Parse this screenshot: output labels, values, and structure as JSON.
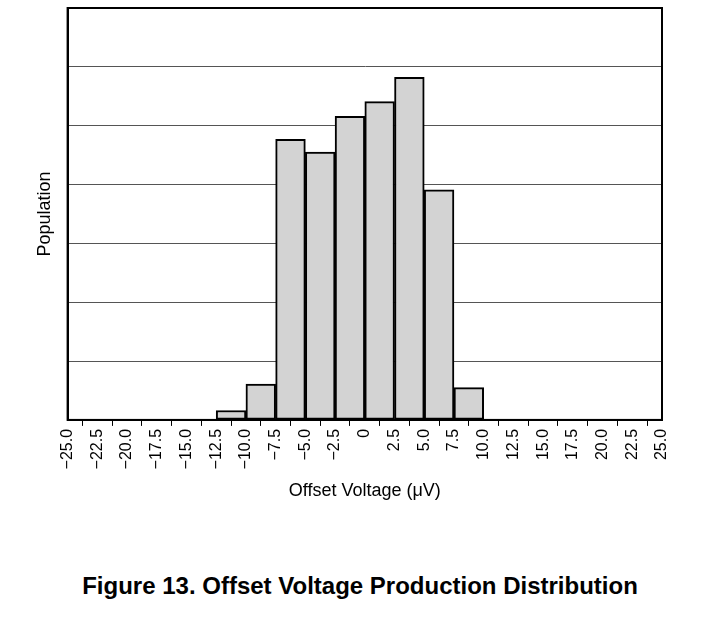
{
  "chart_data": {
    "type": "histogram",
    "title": "Figure 13. Offset Voltage Production Distribution",
    "x_label": "Offset Voltage (μV)",
    "y_label": "Population",
    "bins": [
      -12.5,
      -10,
      -7.5,
      -5,
      -2.5,
      0,
      2.5,
      5,
      7.5,
      10
    ],
    "values": [
      0.16,
      0.61,
      4.77,
      4.55,
      5.16,
      5.41,
      5.82,
      3.91,
      0.55
    ],
    "color": "#d3d3d3",
    "xlim": [
      -25,
      25
    ],
    "xticks": [
      {
        "value": -25,
        "label": "−25.0"
      },
      {
        "value": -22.5,
        "label": "−22.5"
      },
      {
        "value": -20,
        "label": "−20.0"
      },
      {
        "value": -17.5,
        "label": "−17.5"
      },
      {
        "value": -15,
        "label": "−15.0"
      },
      {
        "value": -12.5,
        "label": "−12.5"
      },
      {
        "value": -10,
        "label": "−10.0"
      },
      {
        "value": -7.5,
        "label": "−7.5"
      },
      {
        "value": -5,
        "label": "−5.0"
      },
      {
        "value": -2.5,
        "label": "−2.5"
      },
      0,
      2.5,
      {
        "value": 5,
        "label": "5.0"
      },
      7.5,
      {
        "value": 10,
        "label": "10.0"
      },
      12.5,
      {
        "value": 15,
        "label": "15.0"
      },
      17.5,
      {
        "value": 20,
        "label": "20.0"
      },
      22.5,
      {
        "value": 25,
        "label": "25.0"
      }
    ],
    "ylim": [
      0,
      7
    ],
    "yticks": [
      0,
      1,
      2,
      3,
      4,
      5,
      6,
      7
    ],
    "grid": true,
    "tick_labels": "x"
  }
}
